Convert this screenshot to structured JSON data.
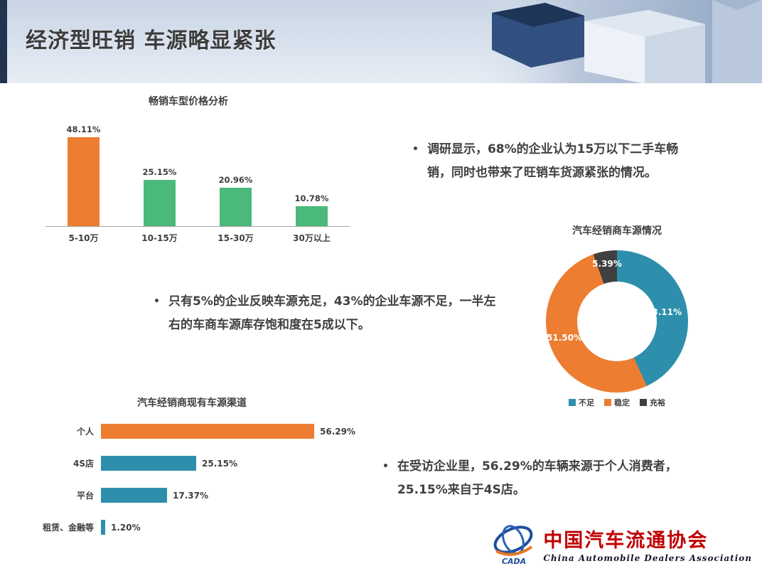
{
  "slide": {
    "title": "经济型旺销 车源略显紧张"
  },
  "bullets": {
    "b1": "调研显示，68%的企业认为15万以下二手车畅销，同时也带来了旺销车货源紧张的情况。",
    "b2": "只有5%的企业反映车源充足，43%的企业车源不足，一半左右的车商车源库存饱和度在5成以下。",
    "b3": "在受访企业里，56.29%的车辆来源于个人消费者，25.15%来自于4S店。"
  },
  "chart_data": [
    {
      "type": "bar",
      "title": "畅销车型价格分析",
      "categories": [
        "5-10万",
        "10-15万",
        "15-30万",
        "30万以上"
      ],
      "values": [
        48.11,
        25.15,
        20.96,
        10.78
      ],
      "value_labels": [
        "48.11%",
        "25.15%",
        "20.96%",
        "10.78%"
      ],
      "bar_colors": [
        "#ED7D31",
        "#4BB97C",
        "#4BB97C",
        "#4BB97C"
      ],
      "ylim": [
        0,
        50
      ],
      "grid": false,
      "legend_position": "none"
    },
    {
      "type": "pie",
      "donut": true,
      "title": "汽车经销商车源情况",
      "categories": [
        "不足",
        "稳定",
        "充裕"
      ],
      "values": [
        43.11,
        51.5,
        5.39
      ],
      "value_labels": [
        "43.11%",
        "51.50%",
        "5.39%"
      ],
      "colors": [
        "#2E8FAD",
        "#ED7D31",
        "#404040"
      ],
      "legend_position": "bottom"
    },
    {
      "type": "bar",
      "orientation": "horizontal",
      "title": "汽车经销商现有车源渠道",
      "categories": [
        "个人",
        "4S店",
        "平台",
        "租赁、金融等"
      ],
      "values": [
        56.29,
        25.15,
        17.37,
        1.2
      ],
      "value_labels": [
        "56.29%",
        "25.15%",
        "17.37%",
        "1.20%"
      ],
      "bar_colors": [
        "#ED7D31",
        "#2E8FAD",
        "#2E8FAD",
        "#2E8FAD"
      ],
      "xlim": [
        0,
        60
      ],
      "grid": false,
      "legend_position": "none"
    }
  ],
  "logo": {
    "acronym": "CADA",
    "name_cn": "中国汽车流通协会",
    "name_en": "China Automobile Dealers Association"
  },
  "colors": {
    "orange": "#ED7D31",
    "green": "#4BB97C",
    "teal": "#2E8FAD",
    "dark_gray": "#404040",
    "header_stripe": "#22334F",
    "logo_red": "#C00000"
  }
}
